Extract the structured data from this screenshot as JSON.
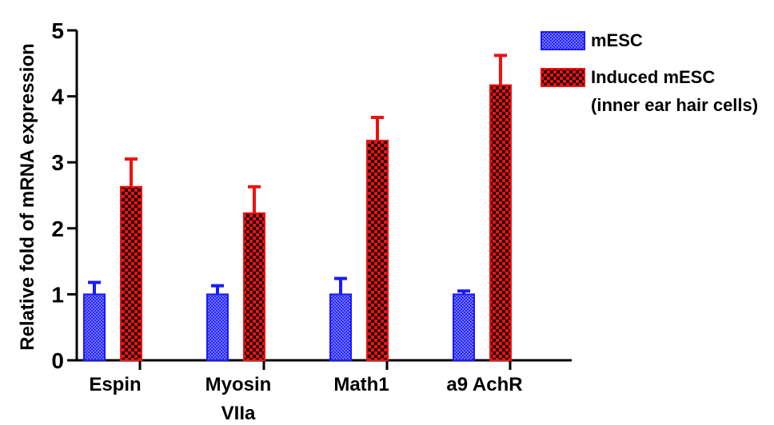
{
  "chart_data": {
    "type": "bar",
    "title": "",
    "xlabel": "",
    "ylabel": "Relative fold of mRNA expression",
    "ylim": [
      0,
      5
    ],
    "yticks": [
      "0",
      "1",
      "2",
      "3",
      "4",
      "5"
    ],
    "categories": [
      [
        "Espin"
      ],
      [
        "Myosin",
        "VIIa"
      ],
      [
        "Math1"
      ],
      [
        "a9 AchR"
      ]
    ],
    "series": [
      {
        "name": "mESC",
        "color": "#1a1aff",
        "pattern": "fine-check",
        "values": [
          1.0,
          1.0,
          1.0,
          1.0
        ],
        "errors": [
          0.18,
          0.13,
          0.24,
          0.05
        ]
      },
      {
        "name": "Induced mESC (inner ear hair cells)",
        "name_lines": [
          "Induced mESC",
          "(inner ear hair cells)"
        ],
        "color": "#ee1111",
        "pattern": "coarse-check",
        "values": [
          2.63,
          2.23,
          3.33,
          4.17
        ],
        "errors": [
          0.42,
          0.4,
          0.35,
          0.45
        ]
      }
    ],
    "legend": "top-right",
    "grid": false
  }
}
